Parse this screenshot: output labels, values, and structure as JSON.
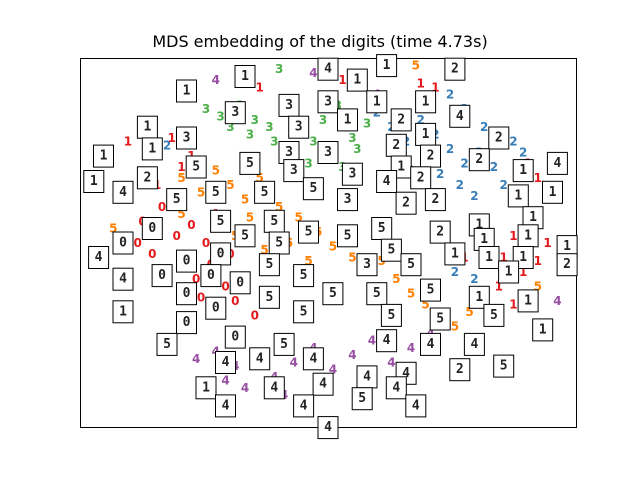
{
  "chart_data": {
    "type": "scatter",
    "title": "MDS embedding of the digits (time 4.73s)",
    "xlabel": "",
    "ylabel": "",
    "xlim": [
      0,
      100
    ],
    "ylim": [
      0,
      100
    ],
    "axes_ticks": false,
    "colors": {
      "0": "#e41a1c",
      "1": "#e41a1c",
      "2": "#377eb8",
      "3": "#4daf4a",
      "4": "#984ea3",
      "5": "#ff7f00"
    },
    "points": [
      {
        "label": "4",
        "x": 27,
        "y": 95
      },
      {
        "label": "1",
        "x": 36,
        "y": 93
      },
      {
        "label": "3",
        "x": 40,
        "y": 98
      },
      {
        "label": "4",
        "x": 47,
        "y": 97
      },
      {
        "label": "1",
        "x": 53,
        "y": 95
      },
      {
        "label": "3",
        "x": 57,
        "y": 93
      },
      {
        "label": "4",
        "x": 60,
        "y": 91
      },
      {
        "label": "5",
        "x": 68,
        "y": 99
      },
      {
        "label": "1",
        "x": 69,
        "y": 94
      },
      {
        "label": "1",
        "x": 72,
        "y": 93
      },
      {
        "label": "2",
        "x": 75,
        "y": 91
      },
      {
        "label": "2",
        "x": 78,
        "y": 87
      },
      {
        "label": "2",
        "x": 82,
        "y": 82
      },
      {
        "label": "1",
        "x": 85,
        "y": 80
      },
      {
        "label": "2",
        "x": 88,
        "y": 78
      },
      {
        "label": "2",
        "x": 90,
        "y": 75
      },
      {
        "label": "1",
        "x": 91,
        "y": 72
      },
      {
        "label": "1",
        "x": 93,
        "y": 68
      },
      {
        "label": "3",
        "x": 25,
        "y": 87
      },
      {
        "label": "3",
        "x": 28,
        "y": 85
      },
      {
        "label": "3",
        "x": 32,
        "y": 88
      },
      {
        "label": "3",
        "x": 35,
        "y": 84
      },
      {
        "label": "3",
        "x": 38,
        "y": 82
      },
      {
        "label": "3",
        "x": 41,
        "y": 86
      },
      {
        "label": "3",
        "x": 44,
        "y": 80
      },
      {
        "label": "3",
        "x": 47,
        "y": 78
      },
      {
        "label": "3",
        "x": 49,
        "y": 84
      },
      {
        "label": "3",
        "x": 52,
        "y": 88
      },
      {
        "label": "3",
        "x": 55,
        "y": 79
      },
      {
        "label": "3",
        "x": 58,
        "y": 83
      },
      {
        "label": "3",
        "x": 43,
        "y": 75
      },
      {
        "label": "3",
        "x": 39,
        "y": 78
      },
      {
        "label": "3",
        "x": 34,
        "y": 80
      },
      {
        "label": "3",
        "x": 30,
        "y": 82
      },
      {
        "label": "3",
        "x": 46,
        "y": 72
      },
      {
        "label": "3",
        "x": 50,
        "y": 74
      },
      {
        "label": "3",
        "x": 53,
        "y": 71
      },
      {
        "label": "3",
        "x": 56,
        "y": 76
      },
      {
        "label": "2",
        "x": 60,
        "y": 86
      },
      {
        "label": "2",
        "x": 63,
        "y": 82
      },
      {
        "label": "2",
        "x": 66,
        "y": 78
      },
      {
        "label": "2",
        "x": 69,
        "y": 84
      },
      {
        "label": "2",
        "x": 72,
        "y": 80
      },
      {
        "label": "2",
        "x": 75,
        "y": 76
      },
      {
        "label": "2",
        "x": 78,
        "y": 72
      },
      {
        "label": "2",
        "x": 81,
        "y": 75
      },
      {
        "label": "2",
        "x": 84,
        "y": 71
      },
      {
        "label": "2",
        "x": 70,
        "y": 73
      },
      {
        "label": "2",
        "x": 73,
        "y": 69
      },
      {
        "label": "2",
        "x": 77,
        "y": 66
      },
      {
        "label": "2",
        "x": 80,
        "y": 63
      },
      {
        "label": "2",
        "x": 86,
        "y": 66
      },
      {
        "label": "2",
        "x": 67,
        "y": 70
      },
      {
        "label": "2",
        "x": 17,
        "y": 77
      },
      {
        "label": "2",
        "x": 76,
        "y": 42
      },
      {
        "label": "2",
        "x": 80,
        "y": 40
      },
      {
        "label": "2",
        "x": 84,
        "y": 44
      },
      {
        "label": "1",
        "x": 9,
        "y": 78
      },
      {
        "label": "1",
        "x": 12,
        "y": 81
      },
      {
        "label": "1",
        "x": 14,
        "y": 76
      },
      {
        "label": "1",
        "x": 18,
        "y": 79
      },
      {
        "label": "1",
        "x": 20,
        "y": 71
      },
      {
        "label": "1",
        "x": 22,
        "y": 74
      },
      {
        "label": "1",
        "x": 15,
        "y": 66
      },
      {
        "label": "1",
        "x": 88,
        "y": 52
      },
      {
        "label": "1",
        "x": 90,
        "y": 48
      },
      {
        "label": "1",
        "x": 92,
        "y": 55
      },
      {
        "label": "1",
        "x": 86,
        "y": 46
      },
      {
        "label": "1",
        "x": 83,
        "y": 50
      },
      {
        "label": "1",
        "x": 80,
        "y": 54
      },
      {
        "label": "1",
        "x": 78,
        "y": 46
      },
      {
        "label": "1",
        "x": 82,
        "y": 36
      },
      {
        "label": "1",
        "x": 85,
        "y": 38
      },
      {
        "label": "1",
        "x": 88,
        "y": 33
      },
      {
        "label": "1",
        "x": 90,
        "y": 42
      },
      {
        "label": "1",
        "x": 93,
        "y": 45
      },
      {
        "label": "1",
        "x": 95,
        "y": 50
      },
      {
        "label": "5",
        "x": 20,
        "y": 68
      },
      {
        "label": "5",
        "x": 24,
        "y": 64
      },
      {
        "label": "5",
        "x": 27,
        "y": 70
      },
      {
        "label": "5",
        "x": 30,
        "y": 66
      },
      {
        "label": "5",
        "x": 33,
        "y": 62
      },
      {
        "label": "5",
        "x": 36,
        "y": 68
      },
      {
        "label": "5",
        "x": 40,
        "y": 60
      },
      {
        "label": "5",
        "x": 44,
        "y": 57
      },
      {
        "label": "5",
        "x": 48,
        "y": 53
      },
      {
        "label": "5",
        "x": 51,
        "y": 49
      },
      {
        "label": "5",
        "x": 55,
        "y": 46
      },
      {
        "label": "5",
        "x": 58,
        "y": 42
      },
      {
        "label": "5",
        "x": 61,
        "y": 45
      },
      {
        "label": "5",
        "x": 64,
        "y": 40
      },
      {
        "label": "5",
        "x": 67,
        "y": 36
      },
      {
        "label": "5",
        "x": 70,
        "y": 33
      },
      {
        "label": "5",
        "x": 73,
        "y": 30
      },
      {
        "label": "5",
        "x": 76,
        "y": 27
      },
      {
        "label": "5",
        "x": 79,
        "y": 31
      },
      {
        "label": "5",
        "x": 38,
        "y": 55
      },
      {
        "label": "5",
        "x": 42,
        "y": 50
      },
      {
        "label": "5",
        "x": 46,
        "y": 45
      },
      {
        "label": "5",
        "x": 34,
        "y": 57
      },
      {
        "label": "5",
        "x": 31,
        "y": 52
      },
      {
        "label": "5",
        "x": 6,
        "y": 54
      },
      {
        "label": "5",
        "x": 20,
        "y": 58
      },
      {
        "label": "5",
        "x": 37,
        "y": 48
      },
      {
        "label": "5",
        "x": 93,
        "y": 38
      },
      {
        "label": "0",
        "x": 8,
        "y": 62
      },
      {
        "label": "0",
        "x": 12,
        "y": 56
      },
      {
        "label": "0",
        "x": 16,
        "y": 60
      },
      {
        "label": "0",
        "x": 19,
        "y": 52
      },
      {
        "label": "0",
        "x": 22,
        "y": 55
      },
      {
        "label": "0",
        "x": 25,
        "y": 50
      },
      {
        "label": "0",
        "x": 14,
        "y": 47
      },
      {
        "label": "0",
        "x": 17,
        "y": 42
      },
      {
        "label": "0",
        "x": 20,
        "y": 45
      },
      {
        "label": "0",
        "x": 23,
        "y": 40
      },
      {
        "label": "0",
        "x": 26,
        "y": 44
      },
      {
        "label": "0",
        "x": 29,
        "y": 38
      },
      {
        "label": "0",
        "x": 11,
        "y": 50
      },
      {
        "label": "0",
        "x": 24,
        "y": 35
      },
      {
        "label": "0",
        "x": 28,
        "y": 31
      },
      {
        "label": "0",
        "x": 31,
        "y": 34
      },
      {
        "label": "0",
        "x": 35,
        "y": 30
      },
      {
        "label": "0",
        "x": 27,
        "y": 58
      },
      {
        "label": "0",
        "x": 30,
        "y": 47
      },
      {
        "label": "4",
        "x": 27,
        "y": 20
      },
      {
        "label": "4",
        "x": 31,
        "y": 16
      },
      {
        "label": "4",
        "x": 35,
        "y": 19
      },
      {
        "label": "4",
        "x": 39,
        "y": 13
      },
      {
        "label": "4",
        "x": 43,
        "y": 17
      },
      {
        "label": "4",
        "x": 47,
        "y": 21
      },
      {
        "label": "4",
        "x": 51,
        "y": 15
      },
      {
        "label": "4",
        "x": 55,
        "y": 19
      },
      {
        "label": "4",
        "x": 59,
        "y": 23
      },
      {
        "label": "4",
        "x": 63,
        "y": 17
      },
      {
        "label": "4",
        "x": 67,
        "y": 21
      },
      {
        "label": "4",
        "x": 71,
        "y": 25
      },
      {
        "label": "4",
        "x": 33,
        "y": 10
      },
      {
        "label": "4",
        "x": 41,
        "y": 8
      },
      {
        "label": "4",
        "x": 49,
        "y": 11
      },
      {
        "label": "4",
        "x": 57,
        "y": 13
      },
      {
        "label": "4",
        "x": 29,
        "y": 12
      },
      {
        "label": "4",
        "x": 64,
        "y": 12
      },
      {
        "label": "4",
        "x": 23,
        "y": 18
      },
      {
        "label": "4",
        "x": 97,
        "y": 34
      }
    ],
    "thumbnails": [
      {
        "digit": "1",
        "x": 21,
        "y": 92
      },
      {
        "digit": "1",
        "x": 33,
        "y": 96
      },
      {
        "digit": "4",
        "x": 50,
        "y": 98
      },
      {
        "digit": "1",
        "x": 56,
        "y": 95
      },
      {
        "digit": "1",
        "x": 62,
        "y": 99
      },
      {
        "digit": "2",
        "x": 76,
        "y": 98
      },
      {
        "digit": "3",
        "x": 31,
        "y": 86
      },
      {
        "digit": "3",
        "x": 42,
        "y": 88
      },
      {
        "digit": "3",
        "x": 50,
        "y": 89
      },
      {
        "digit": "1",
        "x": 54,
        "y": 84
      },
      {
        "digit": "1",
        "x": 60,
        "y": 89
      },
      {
        "digit": "2",
        "x": 65,
        "y": 84
      },
      {
        "digit": "1",
        "x": 70,
        "y": 89
      },
      {
        "digit": "4",
        "x": 77,
        "y": 85
      },
      {
        "digit": "1",
        "x": 13,
        "y": 82
      },
      {
        "digit": "3",
        "x": 21,
        "y": 79
      },
      {
        "digit": "3",
        "x": 44,
        "y": 82
      },
      {
        "digit": "3",
        "x": 50,
        "y": 75
      },
      {
        "digit": "3",
        "x": 42,
        "y": 75
      },
      {
        "digit": "1",
        "x": 14,
        "y": 76
      },
      {
        "digit": "1",
        "x": 4,
        "y": 74
      },
      {
        "digit": "2",
        "x": 64,
        "y": 77
      },
      {
        "digit": "1",
        "x": 70,
        "y": 80
      },
      {
        "digit": "1",
        "x": 65,
        "y": 71
      },
      {
        "digit": "2",
        "x": 71,
        "y": 74
      },
      {
        "digit": "2",
        "x": 85,
        "y": 79
      },
      {
        "digit": "2",
        "x": 81,
        "y": 73
      },
      {
        "digit": "1",
        "x": 90,
        "y": 70
      },
      {
        "digit": "4",
        "x": 97,
        "y": 72
      },
      {
        "digit": "2",
        "x": 13,
        "y": 68
      },
      {
        "digit": "5",
        "x": 23,
        "y": 71
      },
      {
        "digit": "5",
        "x": 34,
        "y": 72
      },
      {
        "digit": "3",
        "x": 43,
        "y": 70
      },
      {
        "digit": "3",
        "x": 55,
        "y": 69
      },
      {
        "digit": "4",
        "x": 62,
        "y": 67
      },
      {
        "digit": "2",
        "x": 69,
        "y": 68
      },
      {
        "digit": "1",
        "x": 2,
        "y": 67
      },
      {
        "digit": "4",
        "x": 8,
        "y": 64
      },
      {
        "digit": "5",
        "x": 27,
        "y": 64
      },
      {
        "digit": "5",
        "x": 37,
        "y": 64
      },
      {
        "digit": "5",
        "x": 47,
        "y": 65
      },
      {
        "digit": "3",
        "x": 54,
        "y": 62
      },
      {
        "digit": "2",
        "x": 66,
        "y": 61
      },
      {
        "digit": "2",
        "x": 72,
        "y": 62
      },
      {
        "digit": "1",
        "x": 89,
        "y": 63
      },
      {
        "digit": "1",
        "x": 96,
        "y": 64
      },
      {
        "digit": "5",
        "x": 19,
        "y": 62
      },
      {
        "digit": "5",
        "x": 28,
        "y": 56
      },
      {
        "digit": "5",
        "x": 39,
        "y": 56
      },
      {
        "digit": "5",
        "x": 46,
        "y": 53
      },
      {
        "digit": "5",
        "x": 61,
        "y": 54
      },
      {
        "digit": "2",
        "x": 73,
        "y": 53
      },
      {
        "digit": "1",
        "x": 81,
        "y": 55
      },
      {
        "digit": "1",
        "x": 92,
        "y": 57
      },
      {
        "digit": "0",
        "x": 8,
        "y": 50
      },
      {
        "digit": "0",
        "x": 14,
        "y": 54
      },
      {
        "digit": "5",
        "x": 33,
        "y": 52
      },
      {
        "digit": "5",
        "x": 40,
        "y": 50
      },
      {
        "digit": "5",
        "x": 54,
        "y": 52
      },
      {
        "digit": "1",
        "x": 82,
        "y": 51
      },
      {
        "digit": "1",
        "x": 91,
        "y": 52
      },
      {
        "digit": "1",
        "x": 99,
        "y": 49
      },
      {
        "digit": "4",
        "x": 3,
        "y": 46
      },
      {
        "digit": "0",
        "x": 21,
        "y": 45
      },
      {
        "digit": "0",
        "x": 28,
        "y": 47
      },
      {
        "digit": "5",
        "x": 63,
        "y": 48
      },
      {
        "digit": "1",
        "x": 76,
        "y": 47
      },
      {
        "digit": "1",
        "x": 83,
        "y": 46
      },
      {
        "digit": "1",
        "x": 90,
        "y": 46
      },
      {
        "digit": "2",
        "x": 99,
        "y": 44
      },
      {
        "digit": "4",
        "x": 8,
        "y": 40
      },
      {
        "digit": "0",
        "x": 16,
        "y": 41
      },
      {
        "digit": "0",
        "x": 26,
        "y": 41
      },
      {
        "digit": "0",
        "x": 32,
        "y": 39
      },
      {
        "digit": "5",
        "x": 38,
        "y": 44
      },
      {
        "digit": "5",
        "x": 45,
        "y": 41
      },
      {
        "digit": "3",
        "x": 58,
        "y": 44
      },
      {
        "digit": "5",
        "x": 67,
        "y": 44
      },
      {
        "digit": "1",
        "x": 87,
        "y": 42
      },
      {
        "digit": "0",
        "x": 21,
        "y": 36
      },
      {
        "digit": "5",
        "x": 38,
        "y": 35
      },
      {
        "digit": "5",
        "x": 51,
        "y": 36
      },
      {
        "digit": "5",
        "x": 60,
        "y": 36
      },
      {
        "digit": "5",
        "x": 71,
        "y": 37
      },
      {
        "digit": "1",
        "x": 81,
        "y": 35
      },
      {
        "digit": "1",
        "x": 91,
        "y": 34
      },
      {
        "digit": "1",
        "x": 8,
        "y": 31
      },
      {
        "digit": "0",
        "x": 27,
        "y": 32
      },
      {
        "digit": "5",
        "x": 45,
        "y": 31
      },
      {
        "digit": "5",
        "x": 63,
        "y": 30
      },
      {
        "digit": "5",
        "x": 73,
        "y": 29
      },
      {
        "digit": "5",
        "x": 84,
        "y": 30
      },
      {
        "digit": "1",
        "x": 94,
        "y": 26
      },
      {
        "digit": "0",
        "x": 21,
        "y": 28
      },
      {
        "digit": "0",
        "x": 31,
        "y": 24
      },
      {
        "digit": "5",
        "x": 17,
        "y": 22
      },
      {
        "digit": "5",
        "x": 41,
        "y": 22
      },
      {
        "digit": "4",
        "x": 62,
        "y": 23
      },
      {
        "digit": "4",
        "x": 71,
        "y": 22
      },
      {
        "digit": "4",
        "x": 80,
        "y": 22
      },
      {
        "digit": "4",
        "x": 47,
        "y": 18
      },
      {
        "digit": "4",
        "x": 29,
        "y": 17
      },
      {
        "digit": "4",
        "x": 36,
        "y": 18
      },
      {
        "digit": "4",
        "x": 58,
        "y": 13
      },
      {
        "digit": "4",
        "x": 66,
        "y": 14
      },
      {
        "digit": "2",
        "x": 77,
        "y": 15
      },
      {
        "digit": "5",
        "x": 86,
        "y": 16
      },
      {
        "digit": "1",
        "x": 25,
        "y": 10
      },
      {
        "digit": "4",
        "x": 39,
        "y": 10
      },
      {
        "digit": "4",
        "x": 49,
        "y": 11
      },
      {
        "digit": "4",
        "x": 64,
        "y": 10
      },
      {
        "digit": "4",
        "x": 29,
        "y": 5
      },
      {
        "digit": "4",
        "x": 45,
        "y": 5
      },
      {
        "digit": "5",
        "x": 57,
        "y": 7
      },
      {
        "digit": "4",
        "x": 68,
        "y": 5
      },
      {
        "digit": "4",
        "x": 50,
        "y": -1
      }
    ]
  }
}
